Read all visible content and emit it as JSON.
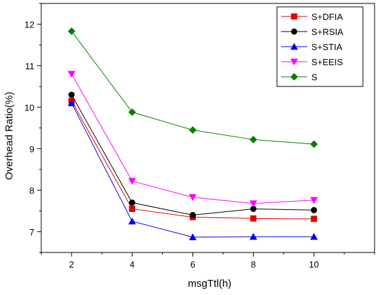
{
  "chart_data": {
    "type": "line",
    "title": "",
    "xlabel": "msgTtl(h)",
    "ylabel": "Overhead Ratio(%)",
    "x": [
      2,
      4,
      6,
      8,
      10
    ],
    "xlim": [
      1,
      12
    ],
    "ylim": [
      6.5,
      12.5
    ],
    "xticks": [
      "2",
      "4",
      "6",
      "8",
      "10"
    ],
    "yticks": [
      "7",
      "8",
      "9",
      "10",
      "11",
      "12"
    ],
    "grid": false,
    "legend_position": "top-right",
    "series": [
      {
        "name": "S+DFIA",
        "color": "#e00000",
        "marker": "square",
        "values": [
          10.15,
          7.55,
          7.35,
          7.32,
          7.31
        ]
      },
      {
        "name": "S+RSIA",
        "color": "#000000",
        "marker": "circle",
        "values": [
          10.3,
          7.7,
          7.4,
          7.55,
          7.52
        ]
      },
      {
        "name": "S+STIA",
        "color": "#0000ee",
        "marker": "triangle-up",
        "values": [
          10.1,
          7.25,
          6.87,
          6.88,
          6.88
        ]
      },
      {
        "name": "S+EEIS",
        "color": "#ff00ff",
        "marker": "triangle-down",
        "values": [
          10.8,
          8.22,
          7.83,
          7.68,
          7.76
        ]
      },
      {
        "name": "S",
        "color": "#008000",
        "marker": "diamond",
        "values": [
          11.83,
          9.88,
          9.45,
          9.22,
          9.11
        ]
      }
    ]
  }
}
